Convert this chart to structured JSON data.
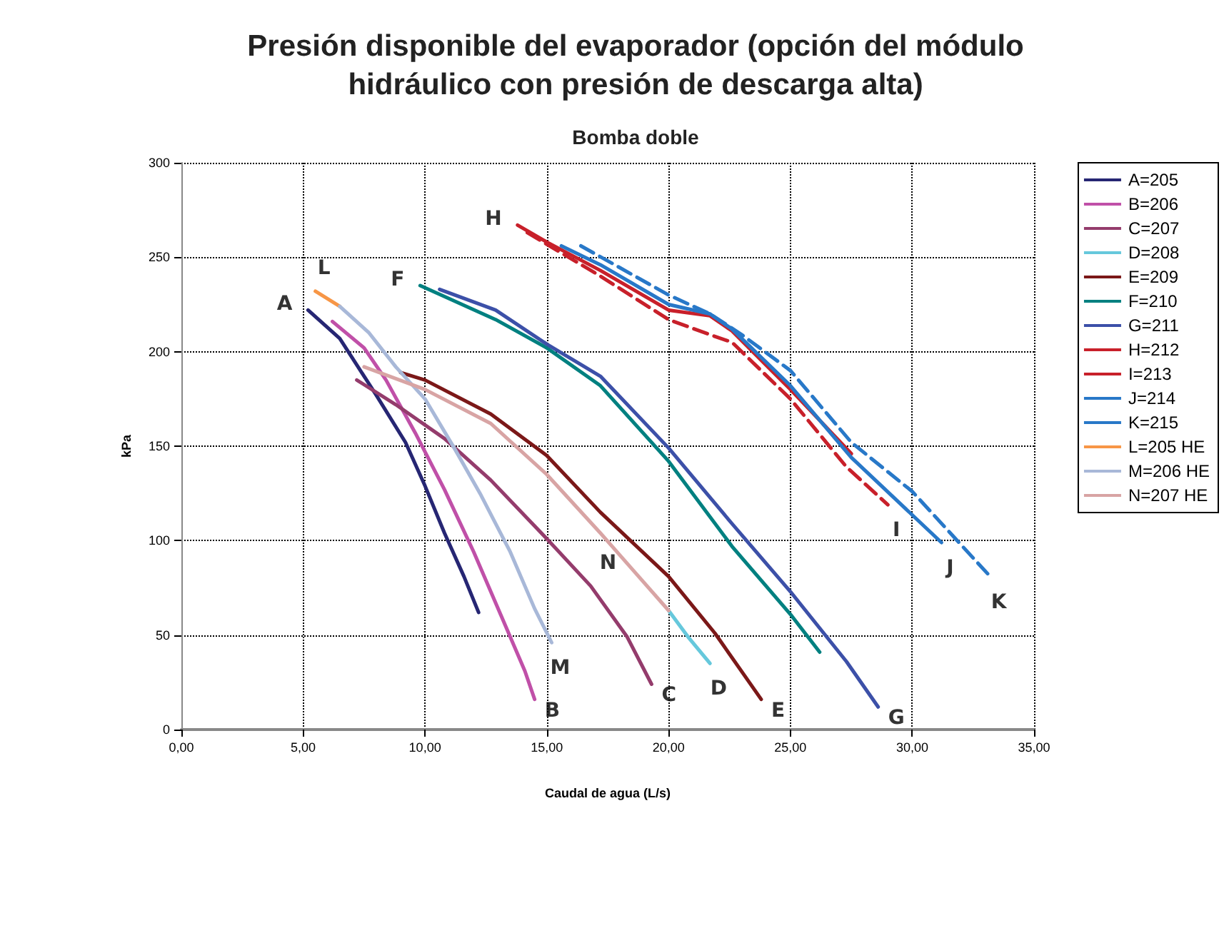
{
  "chart_data": {
    "type": "line",
    "title": "Presión disponible del evaporador (opción del módulo\nhidráulico con presión de descarga alta)",
    "subtitle": "Bomba doble",
    "xlabel": "Caudal de agua (L/s)",
    "ylabel": "kPa",
    "xlim": [
      0,
      35
    ],
    "xticks": [
      {
        "value": 0,
        "label": "0,00"
      },
      {
        "value": 5,
        "label": "5,00"
      },
      {
        "value": 10,
        "label": "10,00"
      },
      {
        "value": 15,
        "label": "15,00"
      },
      {
        "value": 20,
        "label": "20,00"
      },
      {
        "value": 25,
        "label": "25,00"
      },
      {
        "value": 30,
        "label": "30,00"
      },
      {
        "value": 35,
        "label": "35,00"
      }
    ],
    "ylim": [
      0,
      300
    ],
    "yticks": [
      0,
      50,
      100,
      150,
      200,
      250,
      300
    ],
    "grid": true,
    "legend": "right",
    "marker": "none",
    "series": [
      {
        "name": "A=205",
        "color": "#262673",
        "x": [
          5.2,
          6.5,
          8.0,
          9.2,
          10.0,
          10.8,
          11.6,
          12.2
        ],
        "values": [
          222,
          207,
          177,
          152,
          129,
          104,
          81,
          62
        ]
      },
      {
        "name": "B=206",
        "color": "#c050a8",
        "x": [
          6.2,
          7.5,
          8.4,
          9.6,
          10.8,
          12.0,
          13.1,
          14.1,
          14.5
        ],
        "values": [
          216,
          202,
          185,
          157,
          127,
          94,
          61,
          31,
          16
        ]
      },
      {
        "name": "C=207",
        "color": "#943c6c",
        "x": [
          7.2,
          8.8,
          10.8,
          12.7,
          15.0,
          16.8,
          18.3,
          19.3
        ],
        "values": [
          185,
          172,
          154,
          132,
          101,
          76,
          49,
          24
        ]
      },
      {
        "name": "D=208",
        "color": "#66c8dc",
        "x": [
          20.0,
          20.8,
          21.7
        ],
        "values": [
          63,
          49,
          35
        ]
      },
      {
        "name": "E=209",
        "color": "#7b1818",
        "x": [
          9.0,
          10.0,
          12.7,
          15.0,
          17.2,
          20.0,
          21.9,
          23.8
        ],
        "values": [
          189,
          185,
          167,
          145,
          115,
          81,
          51,
          16
        ]
      },
      {
        "name": "F=210",
        "color": "#008080",
        "x": [
          9.8,
          12.9,
          15.0,
          17.2,
          20.0,
          22.6,
          25.0,
          26.2
        ],
        "values": [
          235,
          217,
          202,
          182,
          142,
          97,
          61,
          41
        ]
      },
      {
        "name": "G=211",
        "color": "#3c50a8",
        "x": [
          10.6,
          12.9,
          15.0,
          17.2,
          20.0,
          22.6,
          25.0,
          27.3,
          28.6
        ],
        "values": [
          233,
          222,
          204,
          187,
          149,
          109,
          73,
          36,
          12
        ]
      },
      {
        "name": "H=212",
        "color": "#c8202a",
        "x": [
          13.8,
          15.0,
          17.2,
          20.0,
          21.7,
          22.6,
          25.0,
          27.5
        ],
        "values": [
          267,
          258,
          243,
          222,
          219,
          211,
          180,
          146
        ]
      },
      {
        "name": "I=213",
        "color": "#c8202a",
        "line_style": "dashed",
        "x": [
          14.2,
          17.2,
          20.0,
          21.7,
          22.6,
          25.0,
          27.3,
          29.0
        ],
        "values": [
          263,
          240,
          217,
          209,
          205,
          175,
          139,
          119
        ]
      },
      {
        "name": "J=214",
        "color": "#2878c8",
        "x": [
          15.6,
          17.2,
          20.0,
          21.7,
          22.6,
          25.0,
          27.5,
          31.2
        ],
        "values": [
          256,
          246,
          225,
          220,
          212,
          182,
          144,
          99
        ]
      },
      {
        "name": "K=215",
        "color": "#2878c8",
        "line_style": "dashed",
        "x": [
          16.4,
          20.0,
          21.7,
          23.0,
          25.0,
          27.5,
          30.0,
          33.2
        ],
        "values": [
          256,
          230,
          220,
          209,
          190,
          152,
          126,
          81
        ]
      },
      {
        "name": "L=205 HE",
        "color": "#f79646",
        "x": [
          5.5,
          6.5
        ],
        "values": [
          232,
          224
        ]
      },
      {
        "name": "M=206 HE",
        "color": "#a8b8d8",
        "x": [
          6.5,
          7.7,
          8.8,
          10.0,
          11.2,
          12.3,
          13.5,
          14.5,
          15.2
        ],
        "values": [
          224,
          210,
          192,
          175,
          149,
          124,
          94,
          64,
          46
        ]
      },
      {
        "name": "N=207 HE",
        "color": "#d8a4a4",
        "x": [
          7.5,
          10.0,
          12.7,
          15.0,
          17.2,
          18.5,
          20.0
        ],
        "values": [
          192,
          180,
          162,
          135,
          104,
          85,
          63
        ]
      }
    ],
    "annotations": [
      {
        "text": "A",
        "x": 5.2,
        "y": 222
      },
      {
        "text": "B",
        "x": 14.5,
        "y": 16
      },
      {
        "text": "C",
        "x": 19.3,
        "y": 24
      },
      {
        "text": "D",
        "x": 21.7,
        "y": 35
      },
      {
        "text": "E",
        "x": 23.8,
        "y": 16
      },
      {
        "text": "F",
        "x": 9.8,
        "y": 235
      },
      {
        "text": "G",
        "x": 28.6,
        "y": 12
      },
      {
        "text": "H",
        "x": 13.8,
        "y": 267
      },
      {
        "text": "I",
        "x": 29.0,
        "y": 119
      },
      {
        "text": "J",
        "x": 31.2,
        "y": 99
      },
      {
        "text": "K",
        "x": 33.2,
        "y": 81
      },
      {
        "text": "L",
        "x": 5.5,
        "y": 232
      },
      {
        "text": "M",
        "x": 15.2,
        "y": 46
      },
      {
        "text": "N",
        "x": 18.5,
        "y": 85
      }
    ]
  }
}
